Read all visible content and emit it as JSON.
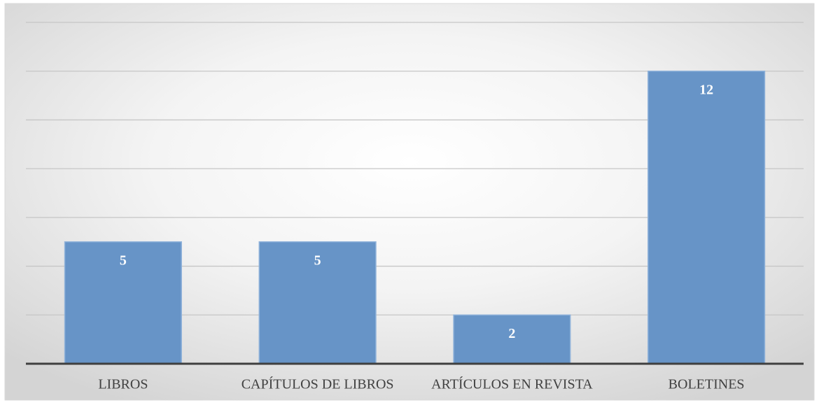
{
  "chart_data": {
    "type": "bar",
    "categories": [
      "LIBROS",
      "CAPÍTULOS DE LIBROS",
      "ARTÍCULOS EN REVISTA",
      "BOLETINES"
    ],
    "values": [
      5,
      5,
      2,
      12
    ],
    "color": "#6794c7",
    "ylim": [
      0,
      14
    ],
    "yticks": [
      0,
      2,
      4,
      6,
      8,
      10,
      12,
      14
    ],
    "grid": true
  }
}
